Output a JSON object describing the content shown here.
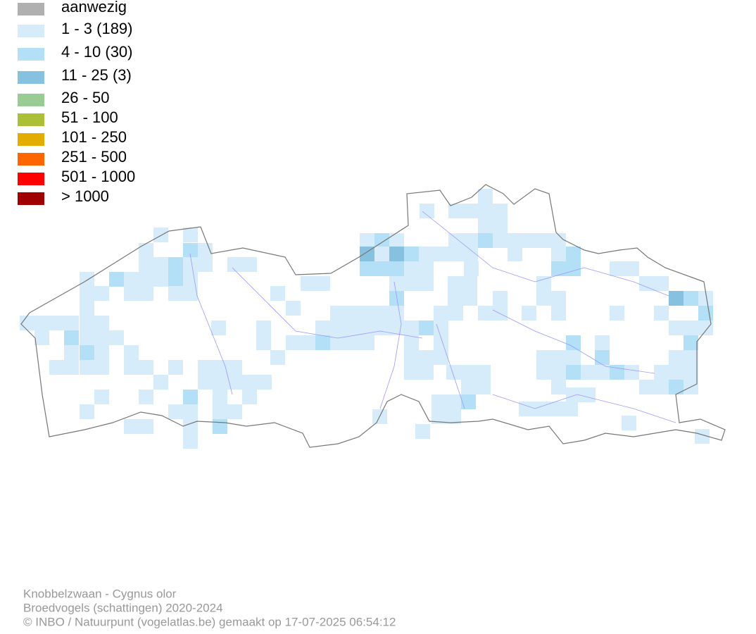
{
  "legend": {
    "items": [
      {
        "label": "aanwezig",
        "color": "#b0b0b0"
      },
      {
        "label": "1 - 3 (189)",
        "color": "#d6ecfa"
      },
      {
        "label": "4 - 10 (30)",
        "color": "#b3e0f7"
      },
      {
        "label": "11 - 25 (3)",
        "color": "#86c2e0"
      },
      {
        "label": "26 - 50",
        "color": "#98cc92"
      },
      {
        "label": "51 - 100",
        "color": "#acc037"
      },
      {
        "label": "101 - 250",
        "color": "#e3ac00"
      },
      {
        "label": "251 - 500",
        "color": "#ff6600"
      },
      {
        "label": "501 - 1000",
        "color": "#ff0000"
      },
      {
        "label": "> 1000",
        "color": "#a00000"
      }
    ]
  },
  "footer": {
    "lines": [
      "Knobbelzwaan - Cygnus olor",
      "Broedvogels (schattingen) 2020-2024",
      "© INBO / Natuurpunt (vogelatlas.be) gemaakt op 17-07-2025 06:54:12"
    ]
  }
}
